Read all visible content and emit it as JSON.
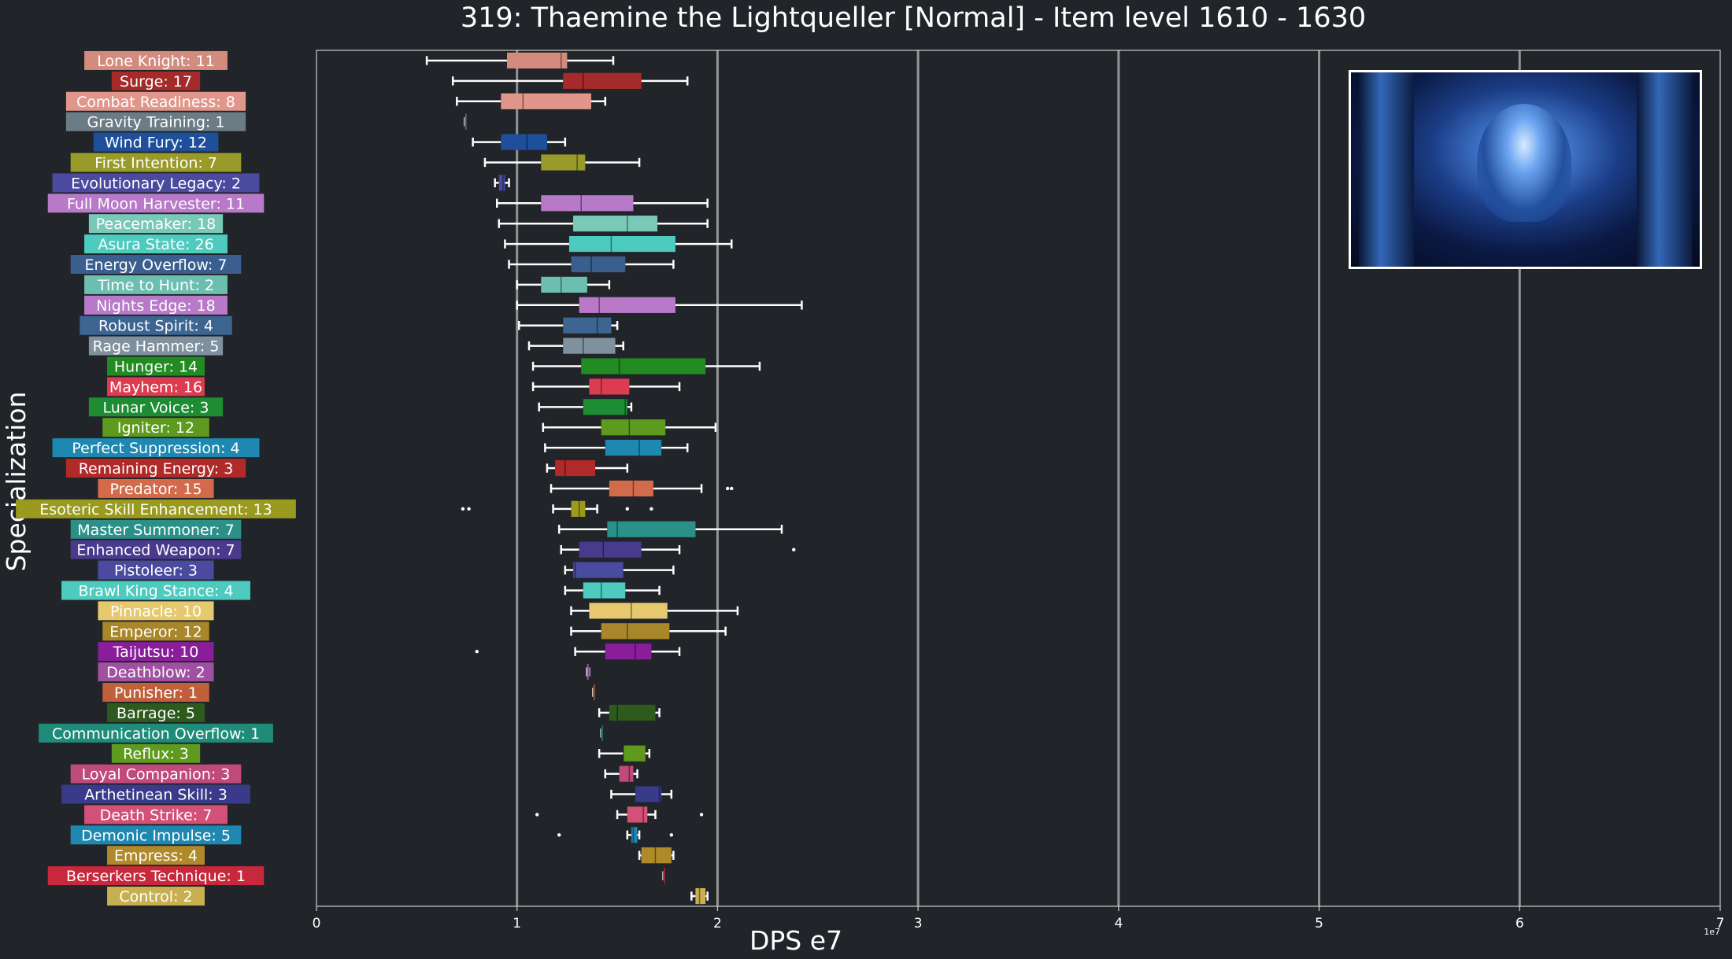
{
  "chart_data": {
    "type": "boxplot",
    "title": "319: Thaemine the Lightqueller [Normal] - Item level 1610 - 1630",
    "xlabel": "DPS e7",
    "ylabel": "Specialization",
    "x_offset_text": "1e7",
    "xlim": [
      0,
      7
    ],
    "xticks": [
      "0",
      "1",
      "2",
      "3",
      "4",
      "5",
      "6",
      "7"
    ],
    "grid": "vertical",
    "colors": {
      "background": "#212428",
      "axis": "#cccccc",
      "grid": "#a8a8a8",
      "whisker": "#ffffff"
    },
    "series": [
      {
        "label": "Lone Knight: 11",
        "color": "#d38b7d",
        "min": 0.55,
        "q1": 0.95,
        "median": 1.22,
        "q3": 1.25,
        "max": 1.48,
        "outliers": []
      },
      {
        "label": "Surge: 17",
        "color": "#a52a2a",
        "min": 0.68,
        "q1": 1.23,
        "median": 1.33,
        "q3": 1.62,
        "max": 1.85,
        "outliers": []
      },
      {
        "label": "Combat Readiness: 8",
        "color": "#e0968a",
        "min": 0.7,
        "q1": 0.92,
        "median": 1.03,
        "q3": 1.37,
        "max": 1.44,
        "outliers": []
      },
      {
        "label": "Gravity Training: 1",
        "color": "#6c7c86",
        "min": 0.74,
        "q1": 0.74,
        "median": 0.74,
        "q3": 0.74,
        "max": 0.74,
        "outliers": []
      },
      {
        "label": "Wind Fury: 12",
        "color": "#1e4f9a",
        "min": 0.78,
        "q1": 0.92,
        "median": 1.05,
        "q3": 1.15,
        "max": 1.24,
        "outliers": []
      },
      {
        "label": "First Intention: 7",
        "color": "#9a9a2a",
        "min": 0.84,
        "q1": 1.12,
        "median": 1.3,
        "q3": 1.34,
        "max": 1.61,
        "outliers": []
      },
      {
        "label": "Evolutionary Legacy: 2",
        "color": "#4a4a9e",
        "min": 0.89,
        "q1": 0.91,
        "median": 0.93,
        "q3": 0.94,
        "max": 0.96,
        "outliers": []
      },
      {
        "label": "Full Moon Harvester: 11",
        "color": "#b87ac8",
        "min": 0.9,
        "q1": 1.12,
        "median": 1.32,
        "q3": 1.58,
        "max": 1.95,
        "outliers": []
      },
      {
        "label": "Peacemaker: 18",
        "color": "#7ac8b8",
        "min": 0.91,
        "q1": 1.28,
        "median": 1.55,
        "q3": 1.7,
        "max": 1.95,
        "outliers": []
      },
      {
        "label": "Asura State: 26",
        "color": "#4ecbbf",
        "min": 0.94,
        "q1": 1.26,
        "median": 1.47,
        "q3": 1.79,
        "max": 2.07,
        "outliers": []
      },
      {
        "label": "Energy Overflow: 7",
        "color": "#3a5f8e",
        "min": 0.96,
        "q1": 1.27,
        "median": 1.37,
        "q3": 1.54,
        "max": 1.78,
        "outliers": []
      },
      {
        "label": "Time to Hunt: 2",
        "color": "#6cbfb0",
        "min": 1.0,
        "q1": 1.12,
        "median": 1.22,
        "q3": 1.35,
        "max": 1.46,
        "outliers": []
      },
      {
        "label": "Nights Edge: 18",
        "color": "#b87ac8",
        "min": 1.0,
        "q1": 1.31,
        "median": 1.41,
        "q3": 1.79,
        "max": 2.42,
        "outliers": []
      },
      {
        "label": "Robust Spirit: 4",
        "color": "#3d6592",
        "min": 1.01,
        "q1": 1.23,
        "median": 1.4,
        "q3": 1.47,
        "max": 1.5,
        "outliers": []
      },
      {
        "label": "Rage Hammer: 5",
        "color": "#7f919e",
        "min": 1.06,
        "q1": 1.23,
        "median": 1.33,
        "q3": 1.49,
        "max": 1.53,
        "outliers": []
      },
      {
        "label": "Hunger: 14",
        "color": "#228b22",
        "min": 1.08,
        "q1": 1.32,
        "median": 1.51,
        "q3": 1.94,
        "max": 2.21,
        "outliers": []
      },
      {
        "label": "Mayhem: 16",
        "color": "#dc3c50",
        "min": 1.08,
        "q1": 1.36,
        "median": 1.42,
        "q3": 1.56,
        "max": 1.81,
        "outliers": []
      },
      {
        "label": "Lunar Voice: 3",
        "color": "#1e8c32",
        "min": 1.11,
        "q1": 1.33,
        "median": 1.54,
        "q3": 1.55,
        "max": 1.57,
        "outliers": []
      },
      {
        "label": "Igniter: 12",
        "color": "#5e9a1e",
        "min": 1.13,
        "q1": 1.42,
        "median": 1.56,
        "q3": 1.74,
        "max": 1.99,
        "outliers": []
      },
      {
        "label": "Perfect Suppression: 4",
        "color": "#1e88b0",
        "min": 1.14,
        "q1": 1.44,
        "median": 1.61,
        "q3": 1.72,
        "max": 1.85,
        "outliers": []
      },
      {
        "label": "Remaining Energy: 3",
        "color": "#b02a2a",
        "min": 1.15,
        "q1": 1.19,
        "median": 1.24,
        "q3": 1.39,
        "max": 1.55,
        "outliers": []
      },
      {
        "label": "Predator: 15",
        "color": "#d36a4a",
        "min": 1.17,
        "q1": 1.46,
        "median": 1.58,
        "q3": 1.68,
        "max": 1.92,
        "outliers": [
          2.05,
          2.07
        ]
      },
      {
        "label": "Esoteric Skill Enhancement: 13",
        "color": "#9a9a1e",
        "min": 1.18,
        "q1": 1.27,
        "median": 1.31,
        "q3": 1.34,
        "max": 1.4,
        "outliers": [
          0.73,
          0.76,
          1.55,
          1.67
        ]
      },
      {
        "label": "Master Summoner: 7",
        "color": "#2a9088",
        "min": 1.21,
        "q1": 1.45,
        "median": 1.5,
        "q3": 1.89,
        "max": 2.32,
        "outliers": []
      },
      {
        "label": "Enhanced Weapon: 7",
        "color": "#4a3a8e",
        "min": 1.22,
        "q1": 1.31,
        "median": 1.43,
        "q3": 1.62,
        "max": 1.81,
        "outliers": [
          2.38
        ]
      },
      {
        "label": "Pistoleer: 3",
        "color": "#4a4aa0",
        "min": 1.24,
        "q1": 1.28,
        "median": 1.29,
        "q3": 1.53,
        "max": 1.78,
        "outliers": []
      },
      {
        "label": "Brawl King Stance: 4",
        "color": "#4ecbbf",
        "min": 1.24,
        "q1": 1.33,
        "median": 1.42,
        "q3": 1.54,
        "max": 1.71,
        "outliers": []
      },
      {
        "label": "Pinnacle: 10",
        "color": "#e6c86e",
        "min": 1.27,
        "q1": 1.36,
        "median": 1.57,
        "q3": 1.75,
        "max": 2.1,
        "outliers": []
      },
      {
        "label": "Emperor: 12",
        "color": "#a8862a",
        "min": 1.27,
        "q1": 1.42,
        "median": 1.55,
        "q3": 1.76,
        "max": 2.04,
        "outliers": []
      },
      {
        "label": "Taijutsu: 10",
        "color": "#8a1e9a",
        "min": 1.29,
        "q1": 1.44,
        "median": 1.59,
        "q3": 1.67,
        "max": 1.81,
        "outliers": [
          0.8
        ]
      },
      {
        "label": "Deathblow: 2",
        "color": "#a050a0",
        "min": 1.35,
        "q1": 1.35,
        "median": 1.36,
        "q3": 1.36,
        "max": 1.36,
        "outliers": []
      },
      {
        "label": "Punisher: 1",
        "color": "#c0603a",
        "min": 1.38,
        "q1": 1.38,
        "median": 1.38,
        "q3": 1.38,
        "max": 1.38,
        "outliers": []
      },
      {
        "label": "Barrage: 5",
        "color": "#2e5a1e",
        "min": 1.41,
        "q1": 1.46,
        "median": 1.5,
        "q3": 1.69,
        "max": 1.71,
        "outliers": []
      },
      {
        "label": "Communication Overflow: 1",
        "color": "#1e8c78",
        "min": 1.42,
        "q1": 1.42,
        "median": 1.42,
        "q3": 1.42,
        "max": 1.42,
        "outliers": []
      },
      {
        "label": "Reflux: 3",
        "color": "#5e9a1e",
        "min": 1.41,
        "q1": 1.53,
        "median": 1.53,
        "q3": 1.64,
        "max": 1.66,
        "outliers": []
      },
      {
        "label": "Loyal Companion: 3",
        "color": "#c04a7a",
        "min": 1.44,
        "q1": 1.51,
        "median": 1.56,
        "q3": 1.58,
        "max": 1.6,
        "outliers": []
      },
      {
        "label": "Arthetinean Skill: 3",
        "color": "#3a3a8a",
        "min": 1.47,
        "q1": 1.59,
        "median": 1.71,
        "q3": 1.72,
        "max": 1.77,
        "outliers": []
      },
      {
        "label": "Death Strike: 7",
        "color": "#d35078",
        "min": 1.5,
        "q1": 1.55,
        "median": 1.63,
        "q3": 1.65,
        "max": 1.69,
        "outliers": [
          1.1,
          1.92
        ]
      },
      {
        "label": "Demonic Impulse: 5",
        "color": "#1e88b0",
        "min": 1.55,
        "q1": 1.57,
        "median": 1.58,
        "q3": 1.6,
        "max": 1.61,
        "outliers": [
          1.21,
          1.77
        ]
      },
      {
        "label": "Empress: 4",
        "color": "#b08a2a",
        "min": 1.61,
        "q1": 1.62,
        "median": 1.69,
        "q3": 1.77,
        "max": 1.78,
        "outliers": []
      },
      {
        "label": "Berserkers Technique: 1",
        "color": "#c8283c",
        "min": 1.73,
        "q1": 1.73,
        "median": 1.73,
        "q3": 1.73,
        "max": 1.73,
        "outliers": []
      },
      {
        "label": "Control: 2",
        "color": "#c8b050",
        "min": 1.87,
        "q1": 1.89,
        "median": 1.91,
        "q3": 1.94,
        "max": 1.95,
        "outliers": []
      }
    ]
  }
}
